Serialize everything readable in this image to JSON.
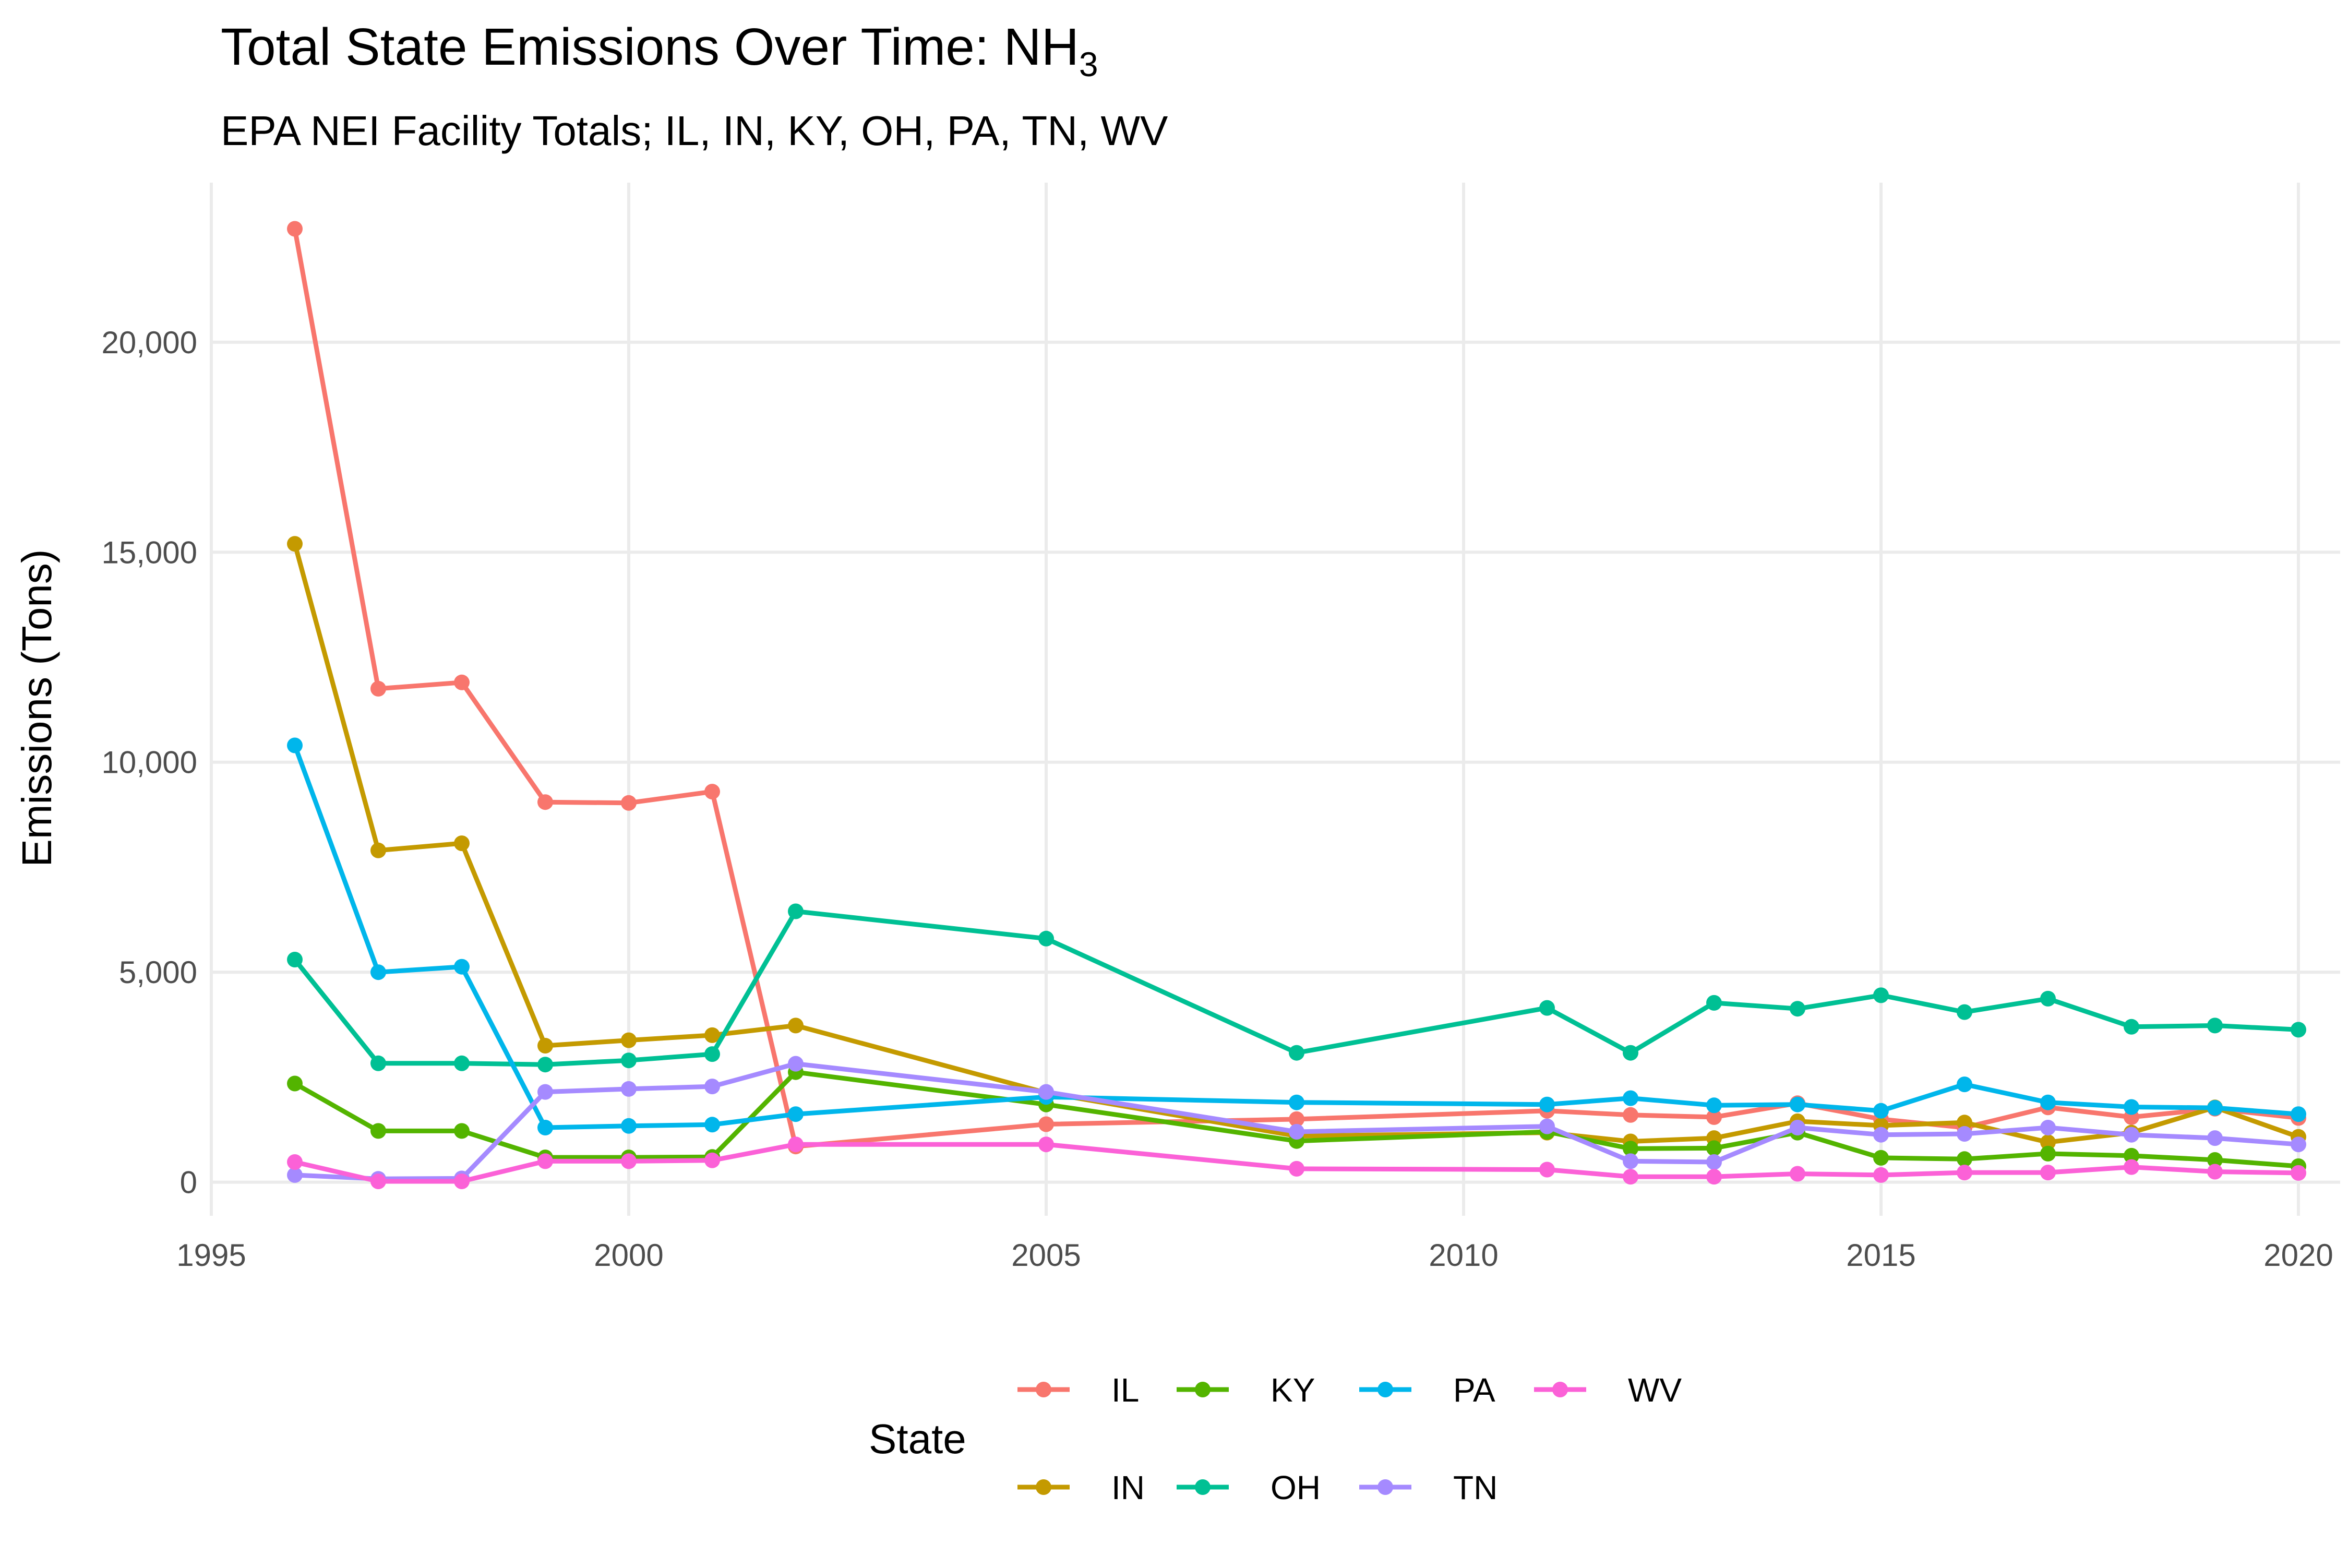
{
  "chart_data": {
    "type": "line",
    "title": "Total State Emissions Over Time: NH",
    "title_subscript": "3",
    "subtitle": "EPA NEI Facility Totals; IL, IN, KY, OH, PA, TN, WV",
    "xlabel": "",
    "ylabel": "Emissions (Tons)",
    "xlim": [
      1995,
      2020.5
    ],
    "ylim": [
      -800,
      23800
    ],
    "x_ticks": [
      1995,
      2000,
      2005,
      2010,
      2015,
      2020
    ],
    "x_tick_labels": [
      "1995",
      "2000",
      "2005",
      "2010",
      "2015",
      "2020"
    ],
    "y_ticks": [
      0,
      5000,
      10000,
      15000,
      20000
    ],
    "y_tick_labels": [
      "0",
      "5,000",
      "10,000",
      "15,000",
      "20,000"
    ],
    "grid": true,
    "legend": {
      "title": "State",
      "position": "bottom",
      "order": [
        "IL",
        "IN",
        "KY",
        "OH",
        "PA",
        "TN",
        "WV"
      ]
    },
    "series": [
      {
        "name": "IL",
        "color": "#F8766D",
        "x": [
          1996,
          1997,
          1998,
          1999,
          2000,
          2001,
          2002,
          2005,
          2008,
          2011,
          2012,
          2013,
          2014,
          2015,
          2016,
          2017,
          2018,
          2019,
          2020
        ],
        "y": [
          22700,
          11750,
          11900,
          9050,
          9030,
          9300,
          850,
          1380,
          1500,
          1700,
          1600,
          1550,
          1880,
          1500,
          1300,
          1780,
          1550,
          1750,
          1530
        ]
      },
      {
        "name": "IN",
        "color": "#C49A00",
        "x": [
          1996,
          1997,
          1998,
          1999,
          2000,
          2001,
          2002,
          2005,
          2008,
          2011,
          2012,
          2013,
          2014,
          2015,
          2016,
          2017,
          2018,
          2019,
          2020
        ],
        "y": [
          15200,
          7900,
          8070,
          3250,
          3380,
          3500,
          3730,
          2130,
          1100,
          1180,
          970,
          1050,
          1450,
          1350,
          1420,
          950,
          1180,
          1780,
          1080
        ]
      },
      {
        "name": "KY",
        "color": "#53B400",
        "x": [
          1996,
          1997,
          1998,
          1999,
          2000,
          2001,
          2002,
          2005,
          2008,
          2011,
          2012,
          2013,
          2014,
          2015,
          2016,
          2017,
          2018,
          2019,
          2020
        ],
        "y": [
          2350,
          1220,
          1220,
          590,
          590,
          600,
          2620,
          1850,
          980,
          1200,
          800,
          810,
          1180,
          580,
          550,
          680,
          630,
          530,
          380
        ]
      },
      {
        "name": "OH",
        "color": "#00C094",
        "x": [
          1996,
          1997,
          1998,
          1999,
          2000,
          2001,
          2002,
          2005,
          2008,
          2011,
          2012,
          2013,
          2014,
          2015,
          2016,
          2017,
          2018,
          2019,
          2020
        ],
        "y": [
          5300,
          2830,
          2830,
          2800,
          2900,
          3050,
          6450,
          5800,
          3080,
          4150,
          3080,
          4270,
          4130,
          4450,
          4050,
          4370,
          3700,
          3730,
          3630
        ]
      },
      {
        "name": "PA",
        "color": "#00B6EB",
        "x": [
          1996,
          1997,
          1998,
          1999,
          2000,
          2001,
          2002,
          2005,
          2008,
          2011,
          2012,
          2013,
          2014,
          2015,
          2016,
          2017,
          2018,
          2019,
          2020
        ],
        "y": [
          10400,
          5000,
          5130,
          1300,
          1340,
          1370,
          1620,
          2030,
          1900,
          1850,
          2000,
          1830,
          1850,
          1700,
          2330,
          1900,
          1790,
          1770,
          1620
        ]
      },
      {
        "name": "TN",
        "color": "#A58AFF",
        "x": [
          1996,
          1997,
          1998,
          1999,
          2000,
          2001,
          2002,
          2005,
          2008,
          2011,
          2012,
          2013,
          2014,
          2015,
          2016,
          2017,
          2018,
          2019,
          2020
        ],
        "y": [
          170,
          80,
          90,
          2150,
          2220,
          2280,
          2820,
          2150,
          1200,
          1330,
          500,
          480,
          1300,
          1130,
          1150,
          1300,
          1130,
          1050,
          900
        ]
      },
      {
        "name": "WV",
        "color": "#FB61D7",
        "x": [
          1996,
          1997,
          1998,
          1999,
          2000,
          2001,
          2002,
          2005,
          2008,
          2011,
          2012,
          2013,
          2014,
          2015,
          2016,
          2017,
          2018,
          2019,
          2020
        ],
        "y": [
          480,
          20,
          20,
          500,
          500,
          520,
          900,
          900,
          320,
          300,
          130,
          130,
          200,
          170,
          230,
          230,
          360,
          250,
          220
        ]
      }
    ]
  }
}
